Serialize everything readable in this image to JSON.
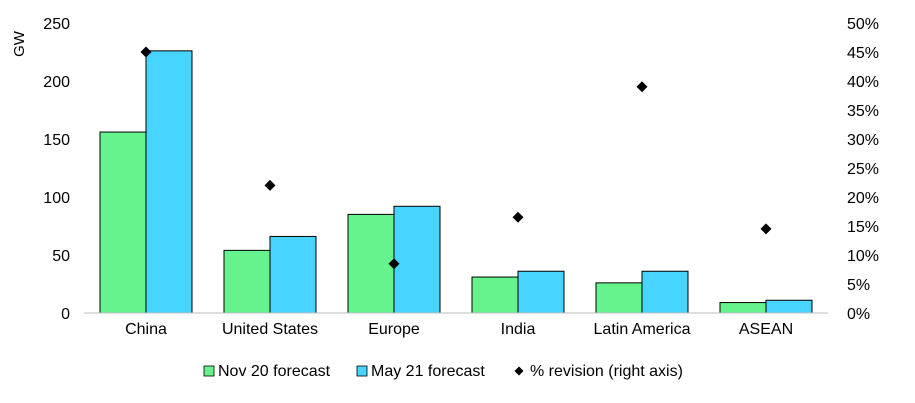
{
  "chart_data": {
    "type": "bar",
    "categories": [
      "China",
      "United States",
      "Europe",
      "India",
      "Latin America",
      "ASEAN"
    ],
    "series": [
      {
        "name": "Nov 20 forecast",
        "kind": "bar",
        "axis": "left",
        "color": "#66F28C",
        "values": [
          156,
          54,
          85,
          31,
          26,
          9
        ]
      },
      {
        "name": "May 21 forecast",
        "kind": "bar",
        "axis": "left",
        "color": "#47D4FF",
        "values": [
          226,
          66,
          92,
          36,
          36,
          11
        ]
      },
      {
        "name": "% revision (right axis)",
        "kind": "scatter",
        "axis": "right",
        "marker": "diamond",
        "color": "#000000",
        "values": [
          0.45,
          0.22,
          0.085,
          0.165,
          0.39,
          0.145
        ]
      }
    ],
    "ylabel": "GW",
    "ylim": [
      0,
      250
    ],
    "yticks": [
      "0",
      "50",
      "100",
      "150",
      "200",
      "250"
    ],
    "y2lim": [
      0,
      0.5
    ],
    "y2ticks": [
      "0%",
      "5%",
      "10%",
      "15%",
      "20%",
      "25%",
      "30%",
      "35%",
      "40%",
      "45%",
      "50%"
    ],
    "legend_position": "bottom",
    "grid": false
  }
}
